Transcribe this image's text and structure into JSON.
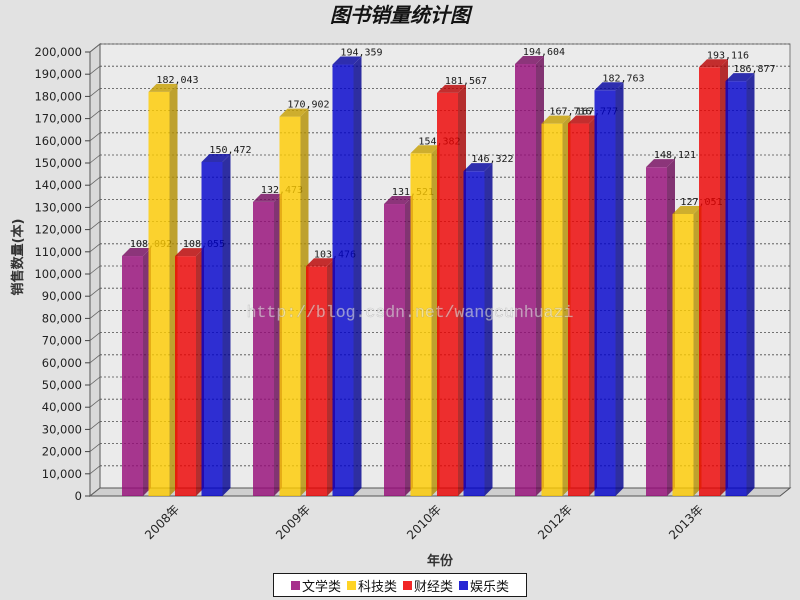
{
  "chart_data": {
    "type": "bar",
    "three_d": true,
    "title": "图书销量统计图",
    "xlabel": "年份",
    "ylabel": "销售数量(本)",
    "categories": [
      "2008年",
      "2009年",
      "2010年",
      "2012年",
      "2013年"
    ],
    "series": [
      {
        "name": "文学类",
        "color": "#960a78",
        "values": [
          108092,
          132473,
          131521,
          194604,
          148121
        ]
      },
      {
        "name": "科技类",
        "color": "#ffcc00",
        "values": [
          182043,
          170902,
          154382,
          167716,
          127051
        ]
      },
      {
        "name": "财经类",
        "color": "#ee0000",
        "values": [
          108055,
          103476,
          181567,
          167777,
          193116
        ]
      },
      {
        "name": "娱乐类",
        "color": "#0000cc",
        "values": [
          150472,
          194359,
          146322,
          182763,
          186877
        ]
      }
    ],
    "ylim": [
      0,
      200000
    ],
    "ytick_labels": [
      "0",
      "10,000",
      "20,000",
      "30,000",
      "40,000",
      "50,000",
      "60,000",
      "70,000",
      "80,000",
      "90,000",
      "100,000",
      "110,000",
      "120,000",
      "130,000",
      "140,000",
      "150,000",
      "160,000",
      "170,000",
      "180,000",
      "190,000",
      "200,000"
    ],
    "grid": true,
    "data_labels": true,
    "legend_position": "bottom"
  },
  "watermark": "http://blog.csdn.net/wangcunhuazi"
}
